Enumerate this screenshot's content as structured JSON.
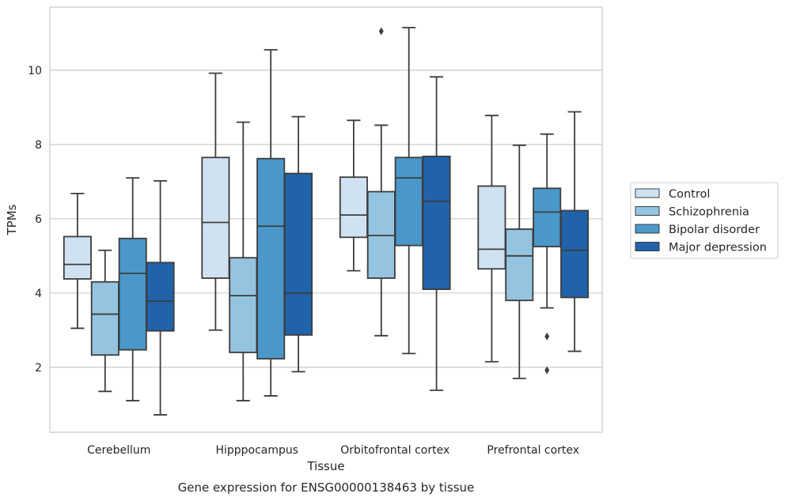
{
  "caption": "Gene expression for ENSG00000138463 by tissue",
  "chart_data": {
    "type": "box",
    "xlabel": "Tissue",
    "ylabel": "TPMs",
    "ylim": [
      0.25,
      11.7
    ],
    "yticks": [
      2,
      4,
      6,
      8,
      10
    ],
    "grid": "horizontal",
    "legend_position": "right",
    "categories": [
      "Cerebellum",
      "Hipppocampus",
      "Orbitofrontal cortex",
      "Prefrontal cortex"
    ],
    "series": [
      {
        "name": "Control",
        "color": "#d0e1f2",
        "boxes": [
          {
            "whislo": 3.05,
            "q1": 4.38,
            "med": 4.77,
            "q3": 5.52,
            "whishi": 6.68,
            "fliers": []
          },
          {
            "whislo": 3.0,
            "q1": 4.4,
            "med": 5.9,
            "q3": 7.65,
            "whishi": 9.92,
            "fliers": []
          },
          {
            "whislo": 4.6,
            "q1": 5.5,
            "med": 6.1,
            "q3": 7.12,
            "whishi": 8.65,
            "fliers": []
          },
          {
            "whislo": 2.15,
            "q1": 4.65,
            "med": 5.18,
            "q3": 6.88,
            "whishi": 8.78,
            "fliers": []
          }
        ]
      },
      {
        "name": "Schizophrenia",
        "color": "#94c4df",
        "boxes": [
          {
            "whislo": 1.35,
            "q1": 2.33,
            "med": 3.43,
            "q3": 4.3,
            "whishi": 5.15,
            "fliers": []
          },
          {
            "whislo": 1.1,
            "q1": 2.4,
            "med": 3.93,
            "q3": 4.95,
            "whishi": 8.6,
            "fliers": []
          },
          {
            "whislo": 2.85,
            "q1": 4.4,
            "med": 5.55,
            "q3": 6.73,
            "whishi": 8.52,
            "fliers": [
              11.05
            ]
          },
          {
            "whislo": 1.7,
            "q1": 3.8,
            "med": 5.0,
            "q3": 5.72,
            "whishi": 7.98,
            "fliers": []
          }
        ]
      },
      {
        "name": "Bipolar disorder",
        "color": "#4a98c9",
        "boxes": [
          {
            "whislo": 1.1,
            "q1": 2.47,
            "med": 4.53,
            "q3": 5.47,
            "whishi": 7.1,
            "fliers": []
          },
          {
            "whislo": 1.23,
            "q1": 2.23,
            "med": 5.8,
            "q3": 7.62,
            "whishi": 10.55,
            "fliers": []
          },
          {
            "whislo": 2.37,
            "q1": 5.28,
            "med": 7.1,
            "q3": 7.65,
            "whishi": 11.15,
            "fliers": []
          },
          {
            "whislo": 3.6,
            "q1": 5.25,
            "med": 6.18,
            "q3": 6.82,
            "whishi": 8.28,
            "fliers": [
              2.83,
              1.92
            ]
          }
        ]
      },
      {
        "name": "Major depression",
        "color": "#2163aa",
        "boxes": [
          {
            "whislo": 0.72,
            "q1": 2.98,
            "med": 3.78,
            "q3": 4.82,
            "whishi": 7.02,
            "fliers": []
          },
          {
            "whislo": 1.88,
            "q1": 2.87,
            "med": 4.0,
            "q3": 7.22,
            "whishi": 8.75,
            "fliers": []
          },
          {
            "whislo": 1.38,
            "q1": 4.1,
            "med": 6.47,
            "q3": 7.68,
            "whishi": 9.82,
            "fliers": []
          },
          {
            "whislo": 2.43,
            "q1": 3.88,
            "med": 5.15,
            "q3": 6.22,
            "whishi": 8.88,
            "fliers": []
          }
        ]
      }
    ]
  }
}
